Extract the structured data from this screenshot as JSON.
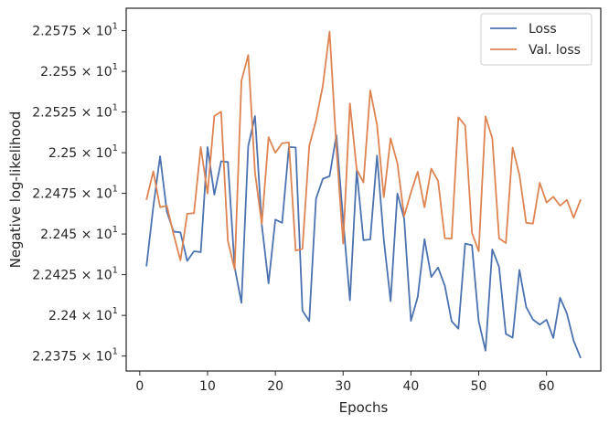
{
  "chart_data": {
    "type": "line",
    "title": "",
    "xlabel": "Epochs",
    "ylabel": "Negative log-likelihood",
    "xlim": [
      -2,
      68
    ],
    "ylim": [
      22.3658,
      22.5888
    ],
    "grid": false,
    "legend_position": "top-right",
    "x_ticks": [
      {
        "value": 0,
        "label": "0"
      },
      {
        "value": 10,
        "label": "10"
      },
      {
        "value": 20,
        "label": "20"
      },
      {
        "value": 30,
        "label": "30"
      },
      {
        "value": 40,
        "label": "40"
      },
      {
        "value": 50,
        "label": "50"
      },
      {
        "value": 60,
        "label": "60"
      }
    ],
    "y_ticks": [
      {
        "value": 22.375,
        "mantissa": "2.2375",
        "times": "×",
        "base": "10",
        "exp": "1"
      },
      {
        "value": 22.4,
        "mantissa": "2.24",
        "times": "×",
        "base": "10",
        "exp": "1"
      },
      {
        "value": 22.425,
        "mantissa": "2.2425",
        "times": "×",
        "base": "10",
        "exp": "1"
      },
      {
        "value": 22.45,
        "mantissa": "2.245",
        "times": "×",
        "base": "10",
        "exp": "1"
      },
      {
        "value": 22.475,
        "mantissa": "2.2475",
        "times": "×",
        "base": "10",
        "exp": "1"
      },
      {
        "value": 22.5,
        "mantissa": "2.25",
        "times": "×",
        "base": "10",
        "exp": "1"
      },
      {
        "value": 22.525,
        "mantissa": "2.2525",
        "times": "×",
        "base": "10",
        "exp": "1"
      },
      {
        "value": 22.55,
        "mantissa": "2.255",
        "times": "×",
        "base": "10",
        "exp": "1"
      },
      {
        "value": 22.575,
        "mantissa": "2.2575",
        "times": "×",
        "base": "10",
        "exp": "1"
      }
    ],
    "x": [
      1,
      2,
      3,
      4,
      5,
      6,
      7,
      8,
      9,
      10,
      11,
      12,
      13,
      14,
      15,
      16,
      17,
      18,
      19,
      20,
      21,
      22,
      23,
      24,
      25,
      26,
      27,
      28,
      29,
      30,
      31,
      32,
      33,
      34,
      35,
      36,
      37,
      38,
      39,
      40,
      41,
      42,
      43,
      44,
      45,
      46,
      47,
      48,
      49,
      50,
      51,
      52,
      53,
      54,
      55,
      56,
      57,
      58,
      59,
      60,
      61,
      62,
      63,
      64,
      65
    ],
    "series": [
      {
        "name": "Loss",
        "color": "#4c72b0",
        "values": [
          22.4305,
          22.4668,
          22.4978,
          22.4637,
          22.4515,
          22.451,
          22.4335,
          22.4394,
          22.4389,
          22.5034,
          22.4742,
          22.4947,
          22.4943,
          22.4295,
          22.4077,
          22.504,
          22.5225,
          22.4557,
          22.4197,
          22.4589,
          22.4569,
          22.5035,
          22.5032,
          22.4029,
          22.3965,
          22.4717,
          22.4839,
          22.4855,
          22.5108,
          22.4587,
          22.4093,
          22.4889,
          22.4462,
          22.4467,
          22.4982,
          22.4465,
          22.4088,
          22.4749,
          22.4594,
          22.3966,
          22.4113,
          22.4468,
          22.4236,
          22.4294,
          22.4182,
          22.3964,
          22.3918,
          22.4441,
          22.4431,
          22.3963,
          22.3783,
          22.4406,
          22.4297,
          22.3886,
          22.3863,
          22.4279,
          22.4051,
          22.3974,
          22.3943,
          22.3973,
          22.3861,
          22.4108,
          22.4012,
          22.3844,
          22.3741
        ]
      },
      {
        "name": "Val. loss",
        "color": "#dd8452",
        "values": [
          22.4714,
          22.4885,
          22.4665,
          22.4673,
          22.4497,
          22.4338,
          22.4625,
          22.4628,
          22.5035,
          22.4749,
          22.5226,
          22.5252,
          22.4458,
          22.4282,
          22.5441,
          22.56,
          22.4877,
          22.4563,
          22.5095,
          22.4999,
          22.5058,
          22.5063,
          22.4398,
          22.4409,
          22.504,
          22.5199,
          22.541,
          22.5745,
          22.5034,
          22.4442,
          22.5303,
          22.4897,
          22.4817,
          22.5383,
          22.517,
          22.4726,
          22.5088,
          22.4935,
          22.461,
          22.4755,
          22.4883,
          22.4664,
          22.4902,
          22.4827,
          22.4474,
          22.4472,
          22.5218,
          22.5167,
          22.4507,
          22.4394,
          22.5223,
          22.5088,
          22.4474,
          22.4444,
          22.5032,
          22.4864,
          22.4569,
          22.4564,
          22.4815,
          22.4693,
          22.4729,
          22.4674,
          22.471,
          22.46,
          22.4709
        ]
      }
    ]
  }
}
